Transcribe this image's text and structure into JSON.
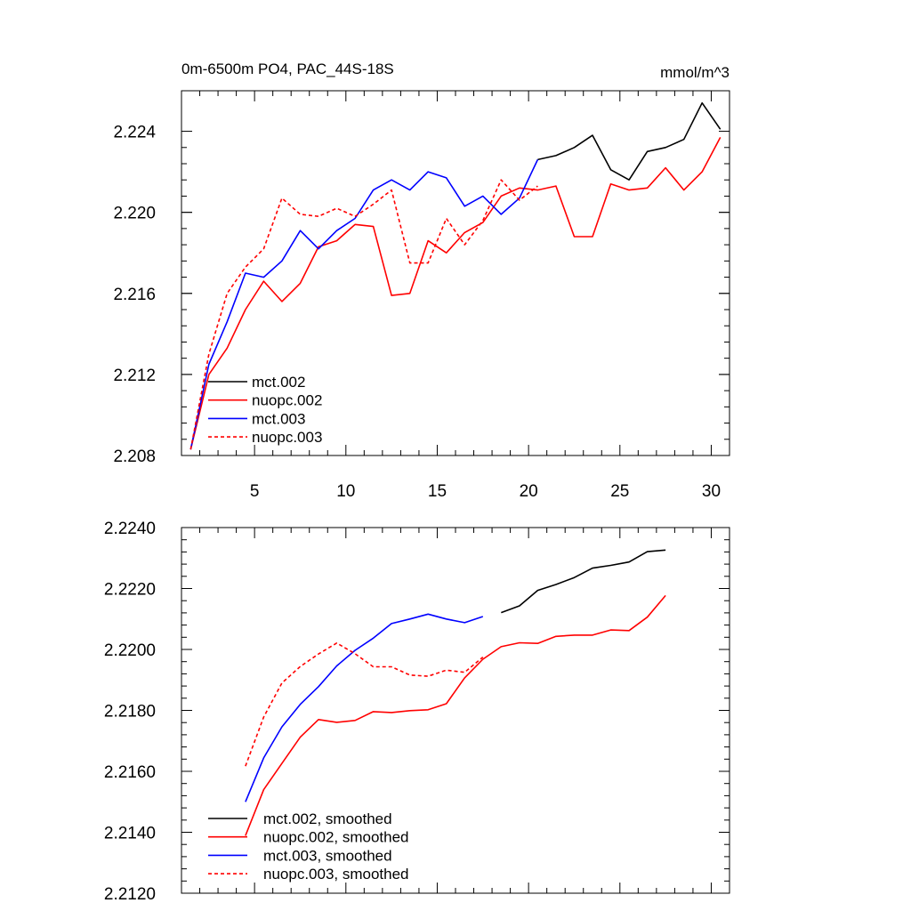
{
  "chart_data": [
    {
      "type": "line",
      "title": "0m-6500m PO4, PAC_44S-18S",
      "units": "mmol/m^3",
      "xlim": [
        1,
        31
      ],
      "ylim": [
        2.208,
        2.226
      ],
      "x_ticks": [
        5,
        10,
        15,
        20,
        25,
        30
      ],
      "y_ticks": [
        2.208,
        2.212,
        2.216,
        2.22,
        2.224
      ],
      "y_tick_labels": [
        "2.208",
        "2.212",
        "2.216",
        "2.220",
        "2.224"
      ],
      "legend_position": "bottom-left",
      "series": [
        {
          "name": "mct.002",
          "color": "#000000",
          "dash": false,
          "x": [
            20.5,
            21.5,
            22.5,
            23.5,
            24.5,
            25.5,
            26.5,
            27.5,
            28.5,
            29.5,
            30.5
          ],
          "y": [
            2.2226,
            2.2228,
            2.2232,
            2.2238,
            2.2221,
            2.2216,
            2.223,
            2.2232,
            2.2236,
            2.2254,
            2.2241
          ]
        },
        {
          "name": "nuopc.002",
          "color": "#ff0000",
          "dash": false,
          "x": [
            1.5,
            2.5,
            3.5,
            4.5,
            5.5,
            6.5,
            7.5,
            8.5,
            9.5,
            10.5,
            11.5,
            12.5,
            13.5,
            14.5,
            15.5,
            16.5,
            17.5,
            18.5,
            19.5,
            20.5,
            21.5,
            22.5,
            23.5,
            24.5,
            25.5,
            26.5,
            27.5,
            28.5,
            29.5,
            30.5
          ],
          "y": [
            2.2083,
            2.212,
            2.2133,
            2.2152,
            2.2166,
            2.2156,
            2.2165,
            2.2183,
            2.2186,
            2.2194,
            2.2193,
            2.2159,
            2.216,
            2.2186,
            2.218,
            2.219,
            2.2195,
            2.2208,
            2.2212,
            2.2211,
            2.2213,
            2.2188,
            2.2188,
            2.2214,
            2.2211,
            2.2212,
            2.2222,
            2.2211,
            2.222,
            2.2237
          ]
        },
        {
          "name": "mct.003",
          "color": "#0000ff",
          "dash": false,
          "x": [
            1.5,
            2.5,
            3.5,
            4.5,
            5.5,
            6.5,
            7.5,
            8.5,
            9.5,
            10.5,
            11.5,
            12.5,
            13.5,
            14.5,
            15.5,
            16.5,
            17.5,
            18.5,
            19.5,
            20.5
          ],
          "y": [
            2.2083,
            2.2125,
            2.2146,
            2.217,
            2.2168,
            2.2176,
            2.2191,
            2.2182,
            2.2191,
            2.2197,
            2.2211,
            2.2216,
            2.2211,
            2.222,
            2.2217,
            2.2203,
            2.2208,
            2.2199,
            2.2207,
            2.2226
          ]
        },
        {
          "name": "nuopc.003",
          "color": "#ff0000",
          "dash": true,
          "x": [
            1.5,
            2.5,
            3.5,
            4.5,
            5.5,
            6.5,
            7.5,
            8.5,
            9.5,
            10.5,
            11.5,
            12.5,
            13.5,
            14.5,
            15.5,
            16.5,
            17.5,
            18.5,
            19.5,
            20.5
          ],
          "y": [
            2.2083,
            2.213,
            2.216,
            2.2173,
            2.2182,
            2.2207,
            2.2199,
            2.2198,
            2.2202,
            2.2198,
            2.2204,
            2.2211,
            2.2175,
            2.2175,
            2.2197,
            2.2184,
            2.2196,
            2.2216,
            2.2206,
            2.2213
          ]
        }
      ]
    },
    {
      "type": "line",
      "xlim": [
        1,
        31
      ],
      "ylim": [
        2.212,
        2.224
      ],
      "x_ticks": [
        5,
        10,
        15,
        20,
        25,
        30
      ],
      "y_ticks": [
        2.212,
        2.214,
        2.216,
        2.218,
        2.22,
        2.222,
        2.224
      ],
      "y_tick_labels": [
        "2.2120",
        "2.2140",
        "2.2160",
        "2.2180",
        "2.2200",
        "2.2220",
        "2.2240"
      ],
      "legend_position": "bottom-left",
      "series": [
        {
          "name": "mct.002, smoothed",
          "color": "#000000",
          "dash": false,
          "x": [
            18.5,
            19.5,
            20.5,
            21.5,
            22.5,
            23.5,
            24.5,
            25.5,
            26.5,
            27.5
          ],
          "y": [
            2.22121,
            2.22143,
            2.22194,
            2.22213,
            2.22236,
            2.22267,
            2.22276,
            2.22287,
            2.22321,
            2.22326
          ]
        },
        {
          "name": "nuopc.002, smoothed",
          "color": "#ff0000",
          "dash": false,
          "x": [
            4.5,
            5.5,
            6.5,
            7.5,
            8.5,
            9.5,
            10.5,
            11.5,
            12.5,
            13.5,
            14.5,
            15.5,
            16.5,
            17.5,
            18.5,
            19.5,
            20.5,
            21.5,
            22.5,
            23.5,
            24.5,
            25.5,
            26.5,
            27.5
          ],
          "y": [
            2.21389,
            2.2154,
            2.21626,
            2.21712,
            2.2177,
            2.21761,
            2.21767,
            2.21796,
            2.21793,
            2.21799,
            2.21802,
            2.21822,
            2.21907,
            2.21968,
            2.22009,
            2.22022,
            2.2202,
            2.22043,
            2.22047,
            2.22047,
            2.22064,
            2.22062,
            2.22106,
            2.22177
          ]
        },
        {
          "name": "mct.003, smoothed",
          "color": "#0000ff",
          "dash": false,
          "x": [
            4.5,
            5.5,
            6.5,
            7.5,
            8.5,
            9.5,
            10.5,
            11.5,
            12.5,
            13.5,
            14.5,
            15.5,
            16.5,
            17.5
          ],
          "y": [
            2.215,
            2.21644,
            2.21746,
            2.2182,
            2.21878,
            2.21946,
            2.21997,
            2.22037,
            2.22085,
            2.221,
            2.22116,
            2.221,
            2.22088,
            2.22108
          ]
        },
        {
          "name": "nuopc.003, smoothed",
          "color": "#ff0000",
          "dash": true,
          "x": [
            4.5,
            5.5,
            6.5,
            7.5,
            8.5,
            9.5,
            10.5,
            11.5,
            12.5,
            13.5,
            14.5,
            15.5,
            16.5,
            17.5
          ],
          "y": [
            2.21617,
            2.21778,
            2.2189,
            2.21944,
            2.21985,
            2.22021,
            2.21986,
            2.21943,
            2.21943,
            2.21916,
            2.21912,
            2.21932,
            2.21925,
            2.21975
          ]
        }
      ]
    }
  ]
}
